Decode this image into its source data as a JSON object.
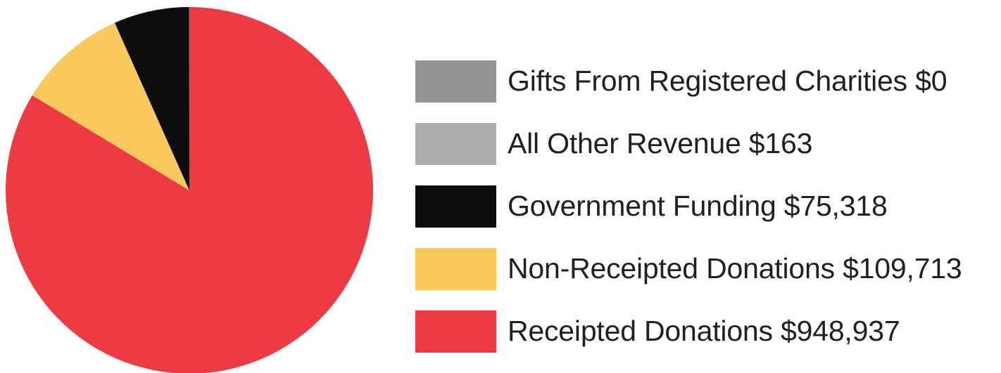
{
  "chart_data": {
    "type": "pie",
    "title": "",
    "currency_symbol": "$",
    "start_angle_deg": 0,
    "direction": "clockwise",
    "slices": [
      {
        "label": "Receipted Donations",
        "value": 948937,
        "value_label": "$948,937",
        "color": "#ee3a43"
      },
      {
        "label": "Non-Receipted Donations",
        "value": 109713,
        "value_label": "$109,713",
        "color": "#f9c85c"
      },
      {
        "label": "Government Funding",
        "value": 75318,
        "value_label": "$75,318",
        "color": "#0d0c0d"
      },
      {
        "label": "All Other Revenue",
        "value": 163,
        "value_label": "$163",
        "color": "#adaeb0"
      },
      {
        "label": "Gifts From Registered Charities",
        "value": 0,
        "value_label": "$0",
        "color": "#939496"
      }
    ],
    "legend": {
      "placement": "right",
      "items": [
        {
          "label": "Gifts From Registered Charities $0",
          "color": "#939496"
        },
        {
          "label": "All Other Revenue $163",
          "color": "#adaeb0"
        },
        {
          "label": "Government Funding $75,318",
          "color": "#0d0c0d"
        },
        {
          "label": "Non-Receipted Donations $109,713",
          "color": "#f9c85c"
        },
        {
          "label": "Receipted Donations $948,937",
          "color": "#ee3a43"
        }
      ]
    }
  }
}
